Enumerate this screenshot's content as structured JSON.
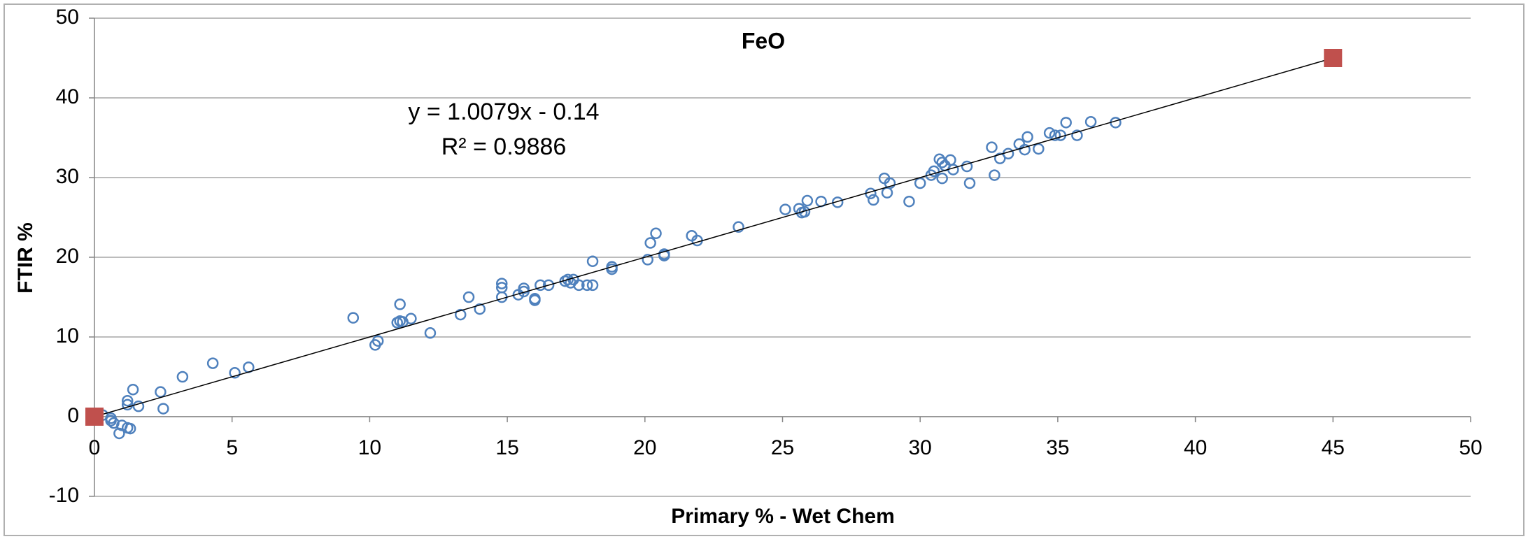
{
  "chart_data": {
    "type": "scatter",
    "title": "FeO",
    "xlabel": "Primary % - Wet Chem",
    "ylabel": "FTIR %",
    "annotations": [
      "y = 1.0079x - 0.14",
      "R² = 0.9886"
    ],
    "xlim": [
      0,
      50
    ],
    "xticks": [
      0,
      5,
      10,
      15,
      20,
      25,
      30,
      35,
      40,
      45,
      50
    ],
    "ylim": [
      -10,
      50
    ],
    "yticks": [
      -10,
      0,
      10,
      20,
      30,
      40,
      50
    ],
    "grid": true,
    "series": [
      {
        "color": "#4f81bd",
        "marker": "circle",
        "x": [
          0.3,
          0.6,
          0.6,
          0.7,
          0.9,
          1.0,
          1.2,
          1.3,
          1.2,
          1.2,
          1.4,
          1.6,
          2.4,
          2.5,
          3.2,
          4.3,
          5.1,
          5.6,
          9.4,
          10.2,
          10.3,
          11.0,
          11.1,
          11.1,
          11.2,
          11.5,
          12.2,
          13.3,
          13.6,
          14.0,
          14.8,
          14.8,
          14.8,
          15.4,
          15.6,
          15.6,
          16.0,
          16.0,
          16.2,
          16.5,
          17.1,
          17.2,
          17.3,
          17.4,
          17.6,
          17.9,
          18.1,
          18.1,
          18.8,
          18.8,
          20.1,
          20.2,
          20.4,
          20.7,
          20.7,
          21.7,
          21.9,
          23.4,
          25.1,
          25.6,
          25.7,
          25.8,
          25.9,
          26.4,
          27.0,
          28.2,
          28.3,
          28.7,
          28.8,
          28.9,
          29.6,
          30.0,
          30.4,
          30.5,
          30.7,
          30.8,
          30.8,
          30.9,
          31.1,
          31.2,
          31.7,
          31.8,
          32.6,
          32.7,
          32.9,
          33.2,
          33.6,
          33.8,
          33.9,
          34.3,
          34.7,
          34.9,
          35.1,
          35.3,
          35.7,
          36.2,
          37.1
        ],
        "values": [
          0.2,
          -0.2,
          -0.5,
          -0.8,
          -2.1,
          -1.1,
          -1.4,
          -1.5,
          1.5,
          2.0,
          3.4,
          1.3,
          3.1,
          1.0,
          5.0,
          6.7,
          5.5,
          6.2,
          12.4,
          9.0,
          9.5,
          11.8,
          12.0,
          14.1,
          11.9,
          12.3,
          10.5,
          12.8,
          15.0,
          13.5,
          15.0,
          16.2,
          16.7,
          15.3,
          15.7,
          16.1,
          14.6,
          14.8,
          16.5,
          16.5,
          17.0,
          17.2,
          16.8,
          17.2,
          16.5,
          16.5,
          16.5,
          19.5,
          18.5,
          18.8,
          19.7,
          21.8,
          23.0,
          20.2,
          20.4,
          22.7,
          22.1,
          23.8,
          26.0,
          26.1,
          25.6,
          25.7,
          27.1,
          27.0,
          26.9,
          28.0,
          27.2,
          29.9,
          28.1,
          29.3,
          27.0,
          29.3,
          30.3,
          30.8,
          32.3,
          31.9,
          29.9,
          31.5,
          32.2,
          31.0,
          31.4,
          29.3,
          33.8,
          30.3,
          32.4,
          33.0,
          34.2,
          33.5,
          35.1,
          33.6,
          35.6,
          35.3,
          35.3,
          36.9,
          35.3,
          37.0,
          36.9
        ]
      },
      {
        "color": "#c0504d",
        "marker": "square",
        "line_color": "#000000",
        "x": [
          0,
          45
        ],
        "values": [
          0,
          45
        ]
      }
    ]
  }
}
